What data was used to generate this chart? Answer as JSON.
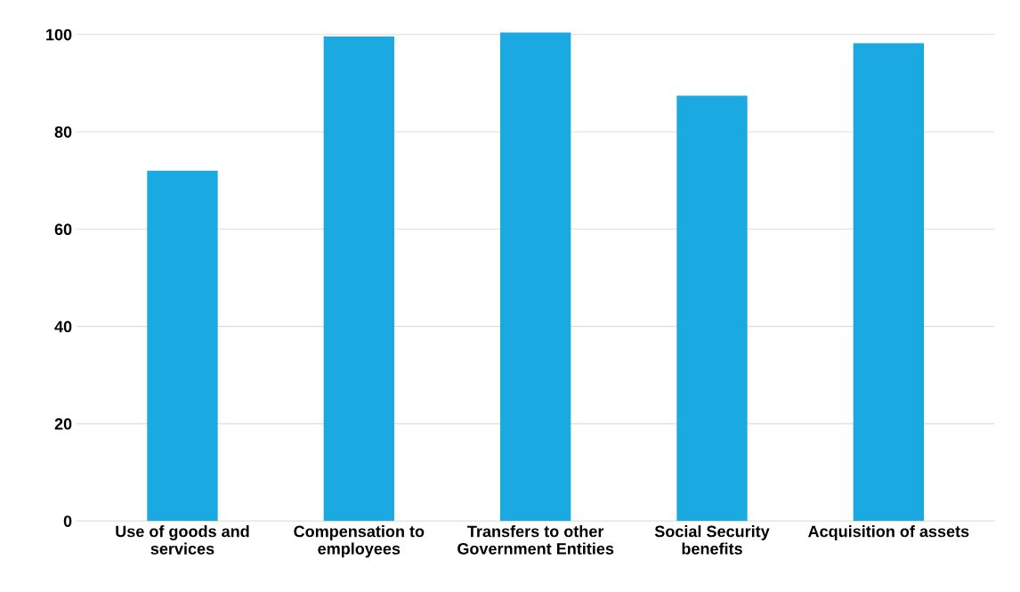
{
  "chart_data": {
    "type": "bar",
    "categories": [
      "Use of goods and\nservices",
      "Compensation to\nemployees",
      "Transfers to other\nGovernment Entities",
      "Social Security\nbenefits",
      "Acquisition of assets"
    ],
    "values": [
      72,
      99.6,
      100.4,
      87.4,
      98.2
    ],
    "color": "#1ba9e1",
    "ylim": [
      0,
      101
    ],
    "yticks": [
      0,
      20,
      40,
      60,
      80,
      100
    ],
    "grid": "y"
  }
}
